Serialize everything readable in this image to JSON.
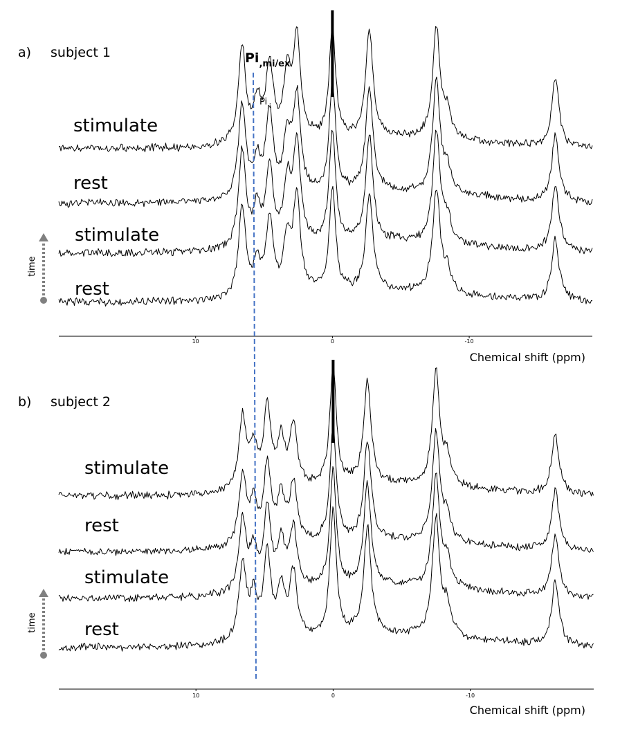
{
  "chart_data": [
    {
      "type": "line",
      "panel_label": "a)",
      "subtitle": "subject 1",
      "xlabel": "Chemical shift (ppm)",
      "xlim": [
        20,
        -19
      ],
      "x_ticks": [
        10,
        0,
        -10
      ],
      "x_tick_labels": [
        "10",
        "0",
        "-10"
      ],
      "time_label": "time",
      "series": [
        {
          "name": "stimulate",
          "peaks": [
            [
              6.6,
              0.88
            ],
            [
              5.5,
              0.35
            ],
            [
              4.6,
              0.7
            ],
            [
              3.3,
              0.55
            ],
            [
              2.6,
              0.92
            ],
            [
              0.0,
              1.0
            ],
            [
              -2.7,
              0.96
            ],
            [
              -7.6,
              1.0
            ],
            [
              -8.4,
              0.22
            ],
            [
              -16.3,
              0.62
            ]
          ]
        },
        {
          "name": "rest",
          "peaks": [
            [
              6.6,
              0.85
            ],
            [
              5.5,
              0.3
            ],
            [
              4.6,
              0.74
            ],
            [
              3.3,
              0.5
            ],
            [
              2.6,
              0.88
            ],
            [
              0.0,
              1.0
            ],
            [
              -2.7,
              0.94
            ],
            [
              -7.6,
              1.0
            ],
            [
              -8.4,
              0.2
            ],
            [
              -16.3,
              0.6
            ]
          ]
        },
        {
          "name": "stimulate",
          "peaks": [
            [
              6.6,
              0.88
            ],
            [
              5.5,
              0.33
            ],
            [
              4.6,
              0.7
            ],
            [
              3.3,
              0.52
            ],
            [
              2.6,
              0.9
            ],
            [
              0.0,
              1.0
            ],
            [
              -2.7,
              0.95
            ],
            [
              -7.6,
              1.0
            ],
            [
              -8.4,
              0.21
            ],
            [
              -16.3,
              0.61
            ]
          ]
        },
        {
          "name": "rest",
          "peaks": [
            [
              6.6,
              0.86
            ],
            [
              5.5,
              0.3
            ],
            [
              4.6,
              0.72
            ],
            [
              3.3,
              0.5
            ],
            [
              2.6,
              0.9
            ],
            [
              0.0,
              1.0
            ],
            [
              -2.7,
              0.94
            ],
            [
              -7.6,
              1.0
            ],
            [
              -8.4,
              0.2
            ],
            [
              -16.3,
              0.6
            ]
          ]
        }
      ]
    },
    {
      "type": "line",
      "panel_label": "b)",
      "subtitle": "subject 2",
      "xlabel": "Chemical shift (ppm)",
      "xlim": [
        20,
        -19
      ],
      "x_ticks": [
        10,
        0,
        -10
      ],
      "x_tick_labels": [
        "10",
        "0",
        "-10"
      ],
      "time_label": "time",
      "series": [
        {
          "name": "stimulate",
          "peaks": [
            [
              6.6,
              0.62
            ],
            [
              5.8,
              0.35
            ],
            [
              4.8,
              0.68
            ],
            [
              3.8,
              0.4
            ],
            [
              2.9,
              0.52
            ],
            [
              0.0,
              1.0
            ],
            [
              -2.5,
              0.86
            ],
            [
              -7.5,
              0.95
            ],
            [
              -8.3,
              0.22
            ],
            [
              -16.2,
              0.52
            ]
          ]
        },
        {
          "name": "rest",
          "peaks": [
            [
              6.6,
              0.62
            ],
            [
              5.8,
              0.33
            ],
            [
              4.8,
              0.68
            ],
            [
              3.8,
              0.4
            ],
            [
              2.9,
              0.52
            ],
            [
              0.0,
              1.0
            ],
            [
              -2.5,
              0.86
            ],
            [
              -7.5,
              0.95
            ],
            [
              -8.3,
              0.22
            ],
            [
              -16.2,
              0.52
            ]
          ]
        },
        {
          "name": "stimulate",
          "peaks": [
            [
              6.6,
              0.62
            ],
            [
              5.8,
              0.33
            ],
            [
              4.8,
              0.68
            ],
            [
              3.8,
              0.4
            ],
            [
              2.9,
              0.52
            ],
            [
              0.0,
              1.0
            ],
            [
              -2.5,
              0.86
            ],
            [
              -7.5,
              0.95
            ],
            [
              -8.3,
              0.22
            ],
            [
              -16.2,
              0.52
            ]
          ]
        },
        {
          "name": "rest",
          "peaks": [
            [
              6.6,
              0.62
            ],
            [
              5.8,
              0.33
            ],
            [
              4.8,
              0.68
            ],
            [
              3.8,
              0.4
            ],
            [
              2.9,
              0.52
            ],
            [
              0.0,
              1.0
            ],
            [
              -2.5,
              0.86
            ],
            [
              -7.5,
              0.95
            ],
            [
              -8.3,
              0.22
            ],
            [
              -16.2,
              0.52
            ]
          ]
        }
      ]
    }
  ],
  "annotations": {
    "pi_mi_ex": {
      "main": "Pi",
      "sub": ",mi/ex",
      "ppm": 5.0
    },
    "pi_i": {
      "main": "Pi",
      "sub": ",i"
    }
  },
  "colors": {
    "trace": "#000000",
    "guide_line": "#4472c4",
    "time_arrow": "#808080"
  }
}
